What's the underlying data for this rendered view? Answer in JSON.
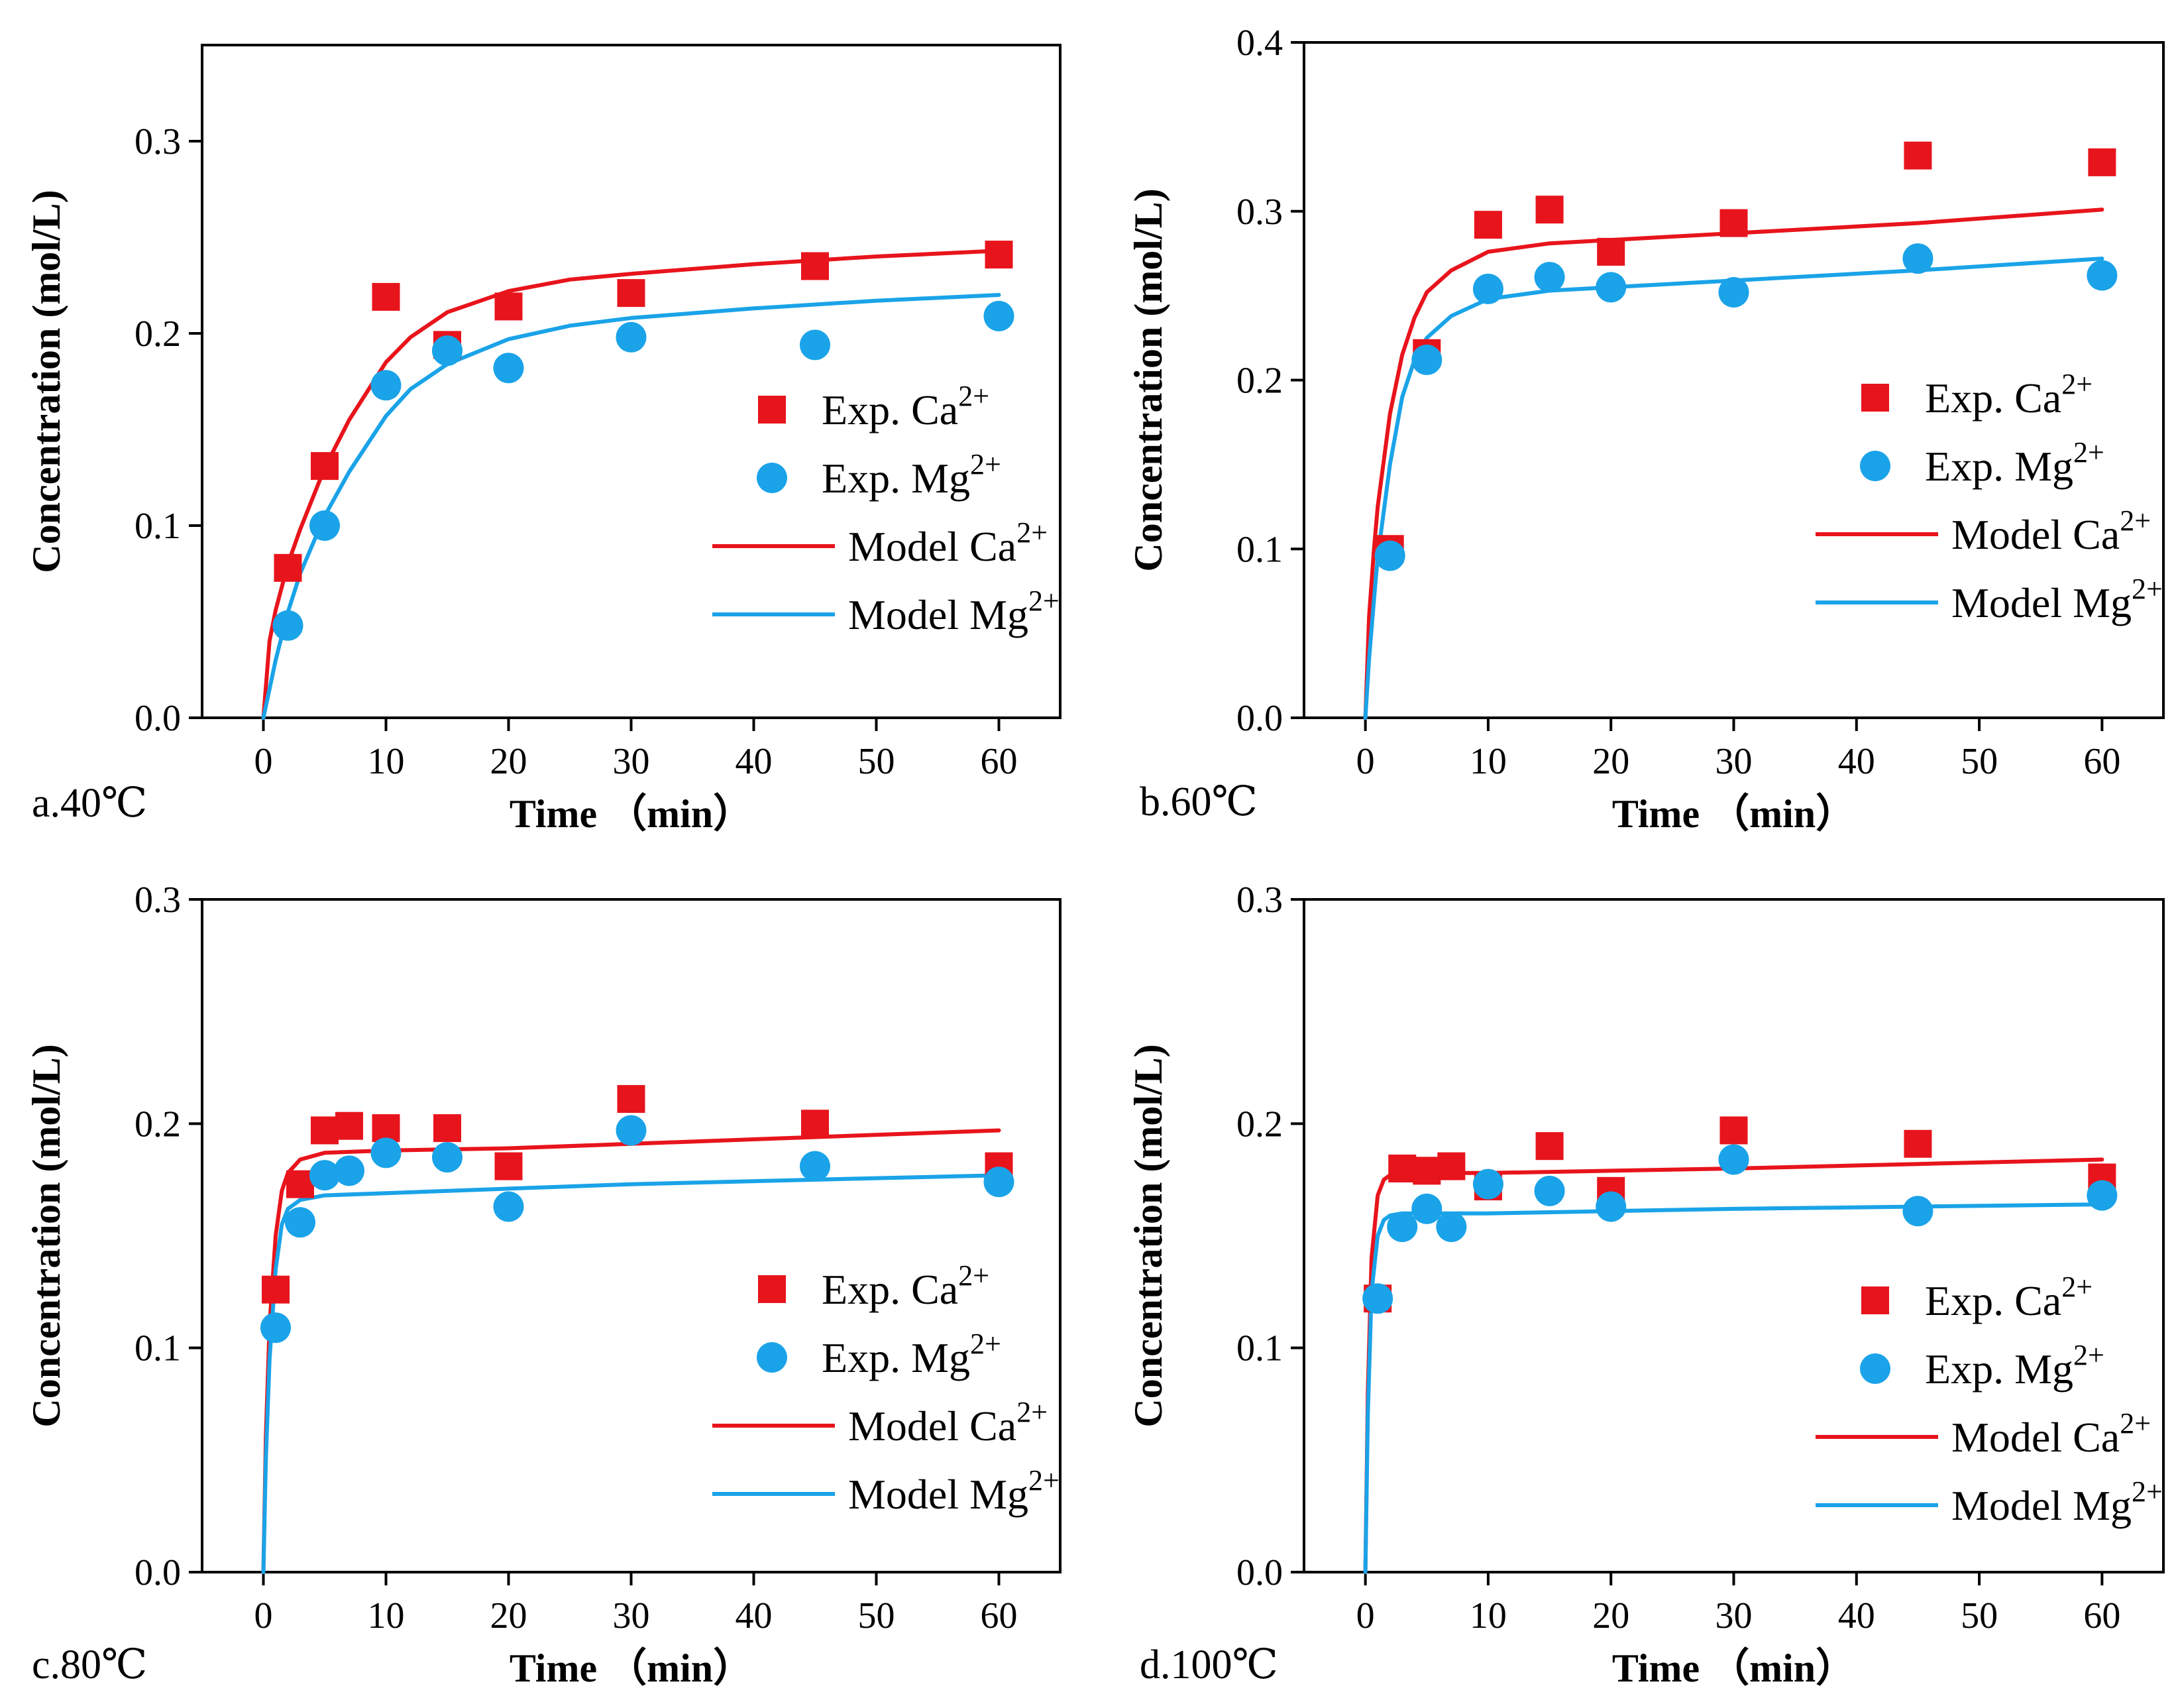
{
  "figure": {
    "legend_labels": {
      "exp_ca": "Exp. Ca",
      "exp_mg": "Exp. Mg",
      "model_ca": "Model Ca",
      "model_mg": "Model Mg",
      "superscript": "2+"
    },
    "colors": {
      "ca": "#e8141c",
      "mg": "#1aa3e8",
      "axis": "#000000"
    }
  },
  "chart_data": [
    {
      "type": "scatter",
      "panel_label": "a.40℃",
      "xlabel": "Time （min）",
      "ylabel": "Concentration (mol/L)",
      "xlim": [
        -5,
        65
      ],
      "ylim": [
        0,
        0.35
      ],
      "xticks": [
        0,
        10,
        20,
        30,
        40,
        50,
        60
      ],
      "yticks": [
        0.0,
        0.1,
        0.2,
        0.3
      ],
      "ytick_labels": [
        "0.0",
        "0.1",
        "0.2",
        "0.3"
      ],
      "legend": "center-right",
      "series": [
        {
          "name": "Exp. Ca2+",
          "kind": "scatter",
          "marker": "square",
          "x": [
            2,
            5,
            10,
            15,
            20,
            30,
            45,
            60
          ],
          "y": [
            0.078,
            0.131,
            0.219,
            0.194,
            0.214,
            0.221,
            0.235,
            0.241
          ]
        },
        {
          "name": "Exp. Mg2+",
          "kind": "scatter",
          "marker": "circle",
          "x": [
            2,
            5,
            10,
            15,
            20,
            30,
            45,
            60
          ],
          "y": [
            0.048,
            0.1,
            0.173,
            0.191,
            0.182,
            0.198,
            0.194,
            0.209
          ]
        },
        {
          "name": "Model Ca2+",
          "kind": "line",
          "x": [
            0,
            0.5,
            1,
            2,
            3,
            5,
            7,
            10,
            12,
            15,
            20,
            25,
            30,
            40,
            50,
            60
          ],
          "y": [
            0,
            0.04,
            0.056,
            0.08,
            0.098,
            0.13,
            0.155,
            0.185,
            0.198,
            0.211,
            0.222,
            0.228,
            0.231,
            0.236,
            0.24,
            0.243
          ]
        },
        {
          "name": "Model Mg2+",
          "kind": "line",
          "x": [
            0,
            0.5,
            1,
            2,
            3,
            5,
            7,
            10,
            12,
            15,
            20,
            25,
            30,
            40,
            50,
            60
          ],
          "y": [
            0,
            0.015,
            0.03,
            0.055,
            0.075,
            0.105,
            0.128,
            0.157,
            0.171,
            0.184,
            0.197,
            0.204,
            0.208,
            0.213,
            0.217,
            0.22
          ]
        }
      ]
    },
    {
      "type": "scatter",
      "panel_label": "b.60℃",
      "xlabel": "Time （min）",
      "ylabel": "Concentration (mol/L)",
      "xlim": [
        -5,
        65
      ],
      "ylim": [
        0,
        0.4
      ],
      "xticks": [
        0,
        10,
        20,
        30,
        40,
        50,
        60
      ],
      "yticks": [
        0.0,
        0.1,
        0.2,
        0.3,
        0.4
      ],
      "ytick_labels": [
        "0.0",
        "0.1",
        "0.2",
        "0.3",
        "0.4"
      ],
      "legend": "center-right",
      "series": [
        {
          "name": "Exp. Ca2+",
          "kind": "scatter",
          "marker": "square",
          "x": [
            2,
            5,
            10,
            15,
            20,
            30,
            45,
            60
          ],
          "y": [
            0.1,
            0.216,
            0.292,
            0.301,
            0.276,
            0.293,
            0.333,
            0.329
          ]
        },
        {
          "name": "Exp. Mg2+",
          "kind": "scatter",
          "marker": "circle",
          "x": [
            2,
            5,
            10,
            15,
            20,
            30,
            45,
            60
          ],
          "y": [
            0.096,
            0.212,
            0.254,
            0.261,
            0.255,
            0.252,
            0.272,
            0.262
          ]
        },
        {
          "name": "Model Ca2+",
          "kind": "line",
          "x": [
            0,
            0.3,
            0.7,
            1,
            2,
            3,
            4,
            5,
            7,
            10,
            15,
            20,
            30,
            45,
            60
          ],
          "y": [
            0,
            0.06,
            0.1,
            0.125,
            0.18,
            0.215,
            0.237,
            0.252,
            0.265,
            0.276,
            0.281,
            0.283,
            0.287,
            0.293,
            0.301
          ]
        },
        {
          "name": "Model Mg2+",
          "kind": "line",
          "x": [
            0,
            0.3,
            0.7,
            1,
            2,
            3,
            4,
            5,
            7,
            10,
            15,
            20,
            30,
            45,
            60
          ],
          "y": [
            0,
            0.035,
            0.07,
            0.095,
            0.15,
            0.19,
            0.212,
            0.225,
            0.238,
            0.248,
            0.253,
            0.255,
            0.259,
            0.265,
            0.272
          ]
        }
      ]
    },
    {
      "type": "scatter",
      "panel_label": "c.80℃",
      "xlabel": "Time （min）",
      "ylabel": "Concentration (mol/L)",
      "xlim": [
        -5,
        65
      ],
      "ylim": [
        0,
        0.3
      ],
      "xticks": [
        0,
        10,
        20,
        30,
        40,
        50,
        60
      ],
      "yticks": [
        0.0,
        0.1,
        0.2,
        0.3
      ],
      "ytick_labels": [
        "0.0",
        "0.1",
        "0.2",
        "0.3"
      ],
      "legend": "lower-right",
      "series": [
        {
          "name": "Exp. Ca2+",
          "kind": "scatter",
          "marker": "square",
          "x": [
            1,
            3,
            5,
            7,
            10,
            15,
            20,
            30,
            45,
            60
          ],
          "y": [
            0.126,
            0.173,
            0.197,
            0.199,
            0.198,
            0.198,
            0.181,
            0.211,
            0.2,
            0.181
          ]
        },
        {
          "name": "Exp. Mg2+",
          "kind": "scatter",
          "marker": "circle",
          "x": [
            1,
            3,
            5,
            7,
            10,
            15,
            20,
            30,
            45,
            60
          ],
          "y": [
            0.109,
            0.156,
            0.177,
            0.179,
            0.187,
            0.185,
            0.163,
            0.197,
            0.181,
            0.174
          ]
        },
        {
          "name": "Model Ca2+",
          "kind": "line",
          "x": [
            0,
            0.2,
            0.5,
            1,
            1.5,
            2,
            3,
            5,
            10,
            20,
            30,
            45,
            60
          ],
          "y": [
            0,
            0.06,
            0.11,
            0.15,
            0.17,
            0.178,
            0.184,
            0.187,
            0.188,
            0.189,
            0.191,
            0.194,
            0.197
          ]
        },
        {
          "name": "Model Mg2+",
          "kind": "line",
          "x": [
            0,
            0.2,
            0.5,
            1,
            1.5,
            2,
            3,
            5,
            10,
            20,
            30,
            45,
            60
          ],
          "y": [
            0,
            0.05,
            0.095,
            0.135,
            0.155,
            0.162,
            0.166,
            0.168,
            0.169,
            0.171,
            0.173,
            0.175,
            0.177
          ]
        }
      ]
    },
    {
      "type": "scatter",
      "panel_label": "d.100℃",
      "xlabel": "Time （min）",
      "ylabel": "Concentration (mol/L)",
      "xlim": [
        -5,
        65
      ],
      "ylim": [
        0,
        0.3
      ],
      "xticks": [
        0,
        10,
        20,
        30,
        40,
        50,
        60
      ],
      "yticks": [
        0.0,
        0.1,
        0.2,
        0.3
      ],
      "ytick_labels": [
        "0.0",
        "0.1",
        "0.2",
        "0.3"
      ],
      "legend": "lower-right",
      "series": [
        {
          "name": "Exp. Ca2+",
          "kind": "scatter",
          "marker": "square",
          "x": [
            1,
            3,
            5,
            7,
            10,
            15,
            20,
            30,
            45,
            60
          ],
          "y": [
            0.122,
            0.18,
            0.179,
            0.181,
            0.172,
            0.19,
            0.17,
            0.197,
            0.191,
            0.176
          ]
        },
        {
          "name": "Exp. Mg2+",
          "kind": "scatter",
          "marker": "circle",
          "x": [
            1,
            3,
            5,
            7,
            10,
            15,
            20,
            30,
            45,
            60
          ],
          "y": [
            0.122,
            0.154,
            0.162,
            0.154,
            0.173,
            0.17,
            0.163,
            0.184,
            0.161,
            0.168
          ]
        },
        {
          "name": "Model Ca2+",
          "kind": "line",
          "x": [
            0,
            0.2,
            0.5,
            1,
            1.5,
            2,
            3,
            5,
            10,
            20,
            30,
            45,
            60
          ],
          "y": [
            0,
            0.08,
            0.14,
            0.168,
            0.175,
            0.177,
            0.178,
            0.178,
            0.178,
            0.179,
            0.18,
            0.182,
            0.184
          ]
        },
        {
          "name": "Model Mg2+",
          "kind": "line",
          "x": [
            0,
            0.2,
            0.5,
            1,
            1.5,
            2,
            3,
            5,
            10,
            20,
            30,
            45,
            60
          ],
          "y": [
            0,
            0.07,
            0.125,
            0.15,
            0.157,
            0.159,
            0.16,
            0.16,
            0.16,
            0.161,
            0.162,
            0.163,
            0.164
          ]
        }
      ]
    }
  ]
}
